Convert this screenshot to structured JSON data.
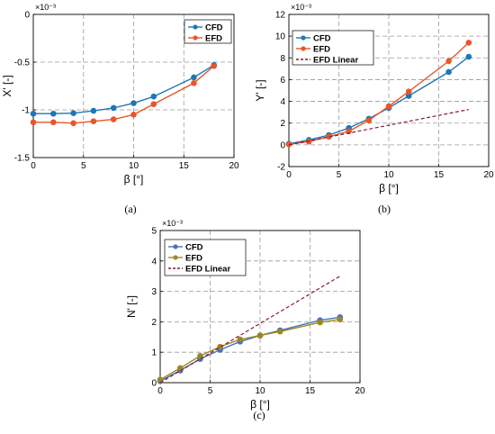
{
  "chart_data": [
    {
      "type": "line",
      "subcaption": "(a)",
      "xlabel": "β [°]",
      "ylabel": "X' [-]",
      "exponent_label": "×10⁻³",
      "xlim": [
        0,
        20
      ],
      "ylim": [
        -1.5,
        0
      ],
      "xticks": [
        0,
        5,
        10,
        15,
        20
      ],
      "yticks": [
        0,
        -0.5,
        -1,
        -1.5
      ],
      "ytick_labels": [
        "0",
        "-0.5",
        "-1",
        "-1.5"
      ],
      "grid": true,
      "legend_position": "top-right",
      "series": [
        {
          "name": "CFD",
          "color": "#1f77b4",
          "marker": "circle",
          "x": [
            0,
            2,
            4,
            6,
            8,
            10,
            12,
            16,
            18
          ],
          "y": [
            -1.04,
            -1.04,
            -1.035,
            -1.01,
            -0.98,
            -0.93,
            -0.86,
            -0.66,
            -0.53
          ]
        },
        {
          "name": "EFD",
          "color": "#e8562a",
          "marker": "circle",
          "x": [
            0,
            2,
            4,
            6,
            8,
            10,
            12,
            16,
            18
          ],
          "y": [
            -1.13,
            -1.13,
            -1.14,
            -1.12,
            -1.1,
            -1.05,
            -0.94,
            -0.72,
            -0.54
          ]
        }
      ]
    },
    {
      "type": "line",
      "subcaption": "(b)",
      "xlabel": "β [°]",
      "ylabel": "Y' [-]",
      "exponent_label": "×10⁻³",
      "xlim": [
        0,
        20
      ],
      "ylim": [
        -2,
        12
      ],
      "xticks": [
        0,
        5,
        10,
        15,
        20
      ],
      "yticks": [
        -2,
        0,
        2,
        4,
        6,
        8,
        10,
        12
      ],
      "ytick_labels": [
        "-2",
        "0",
        "2",
        "4",
        "6",
        "8",
        "10",
        "12"
      ],
      "grid": true,
      "legend_position": "top-left",
      "series": [
        {
          "name": "CFD",
          "color": "#1f77b4",
          "marker": "circle",
          "x": [
            0,
            2,
            4,
            6,
            8,
            10,
            12,
            16,
            18
          ],
          "y": [
            0.1,
            0.45,
            0.9,
            1.55,
            2.4,
            3.4,
            4.5,
            6.7,
            8.1
          ]
        },
        {
          "name": "EFD",
          "color": "#e8562a",
          "marker": "circle",
          "x": [
            0,
            2,
            4,
            6,
            8,
            10,
            12,
            16,
            18
          ],
          "y": [
            0.05,
            0.3,
            0.75,
            1.25,
            2.25,
            3.55,
            4.9,
            7.7,
            9.4
          ]
        },
        {
          "name": "EFD Linear",
          "color": "#8b1a2b",
          "dashed": true,
          "x": [
            0,
            18
          ],
          "y": [
            0.0,
            3.25
          ]
        }
      ]
    },
    {
      "type": "line",
      "subcaption": "(c)",
      "xlabel": "β [°]",
      "ylabel": "N' [-]",
      "exponent_label": "×10⁻³",
      "xlim": [
        0,
        20
      ],
      "ylim": [
        0,
        5
      ],
      "xticks": [
        0,
        5,
        10,
        15,
        20
      ],
      "yticks": [
        0,
        1,
        2,
        3,
        4,
        5
      ],
      "ytick_labels": [
        "0",
        "1",
        "2",
        "3",
        "4",
        "5"
      ],
      "grid": true,
      "legend_position": "top-left",
      "series": [
        {
          "name": "CFD",
          "color": "#4472c4",
          "marker": "circle",
          "x": [
            0,
            2,
            4,
            6,
            8,
            10,
            12,
            16,
            18
          ],
          "y": [
            0.05,
            0.4,
            0.78,
            1.08,
            1.35,
            1.55,
            1.72,
            2.05,
            2.15
          ]
        },
        {
          "name": "EFD",
          "color": "#9a8a1e",
          "marker": "circle",
          "x": [
            0,
            2,
            4,
            6,
            8,
            10,
            12,
            16,
            18
          ],
          "y": [
            0.1,
            0.48,
            0.88,
            1.18,
            1.42,
            1.55,
            1.68,
            1.98,
            2.08
          ]
        },
        {
          "name": "EFD Linear",
          "color": "#8b1a2b",
          "dashed": true,
          "x": [
            0,
            18
          ],
          "y": [
            0.0,
            3.5
          ]
        }
      ]
    }
  ]
}
